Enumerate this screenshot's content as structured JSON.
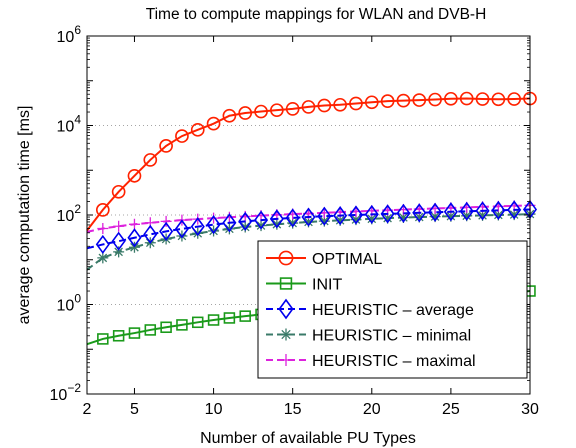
{
  "chart_data": {
    "type": "line",
    "title": "Time to compute mappings for WLAN and DVB-H",
    "xlabel": "Number of available PU Types",
    "ylabel": "average computation time [ms]",
    "y_scale": "log",
    "xlim": [
      2,
      30
    ],
    "ylim": [
      0.01,
      1000000
    ],
    "x_ticks": [
      2,
      5,
      10,
      15,
      20,
      25,
      30
    ],
    "y_ticks": [
      {
        "value": 0.01,
        "base": "10",
        "exp": "−2"
      },
      {
        "value": 1,
        "base": "10",
        "exp": "0"
      },
      {
        "value": 100,
        "base": "10",
        "exp": "2"
      },
      {
        "value": 10000,
        "base": "10",
        "exp": "4"
      },
      {
        "value": 1000000,
        "base": "10",
        "exp": "6"
      }
    ],
    "grid": "horizontal dotted at major y ticks",
    "legend_position": "bottom-right",
    "x": [
      2,
      3,
      4,
      5,
      6,
      7,
      8,
      9,
      10,
      11,
      12,
      13,
      14,
      15,
      16,
      17,
      18,
      19,
      20,
      21,
      22,
      23,
      24,
      25,
      26,
      27,
      28,
      29,
      30
    ],
    "series": [
      {
        "name": "OPTIMAL",
        "color": "#ff2200",
        "line_style": "solid",
        "marker": "circle",
        "x_start": 3,
        "values": [
          45,
          130,
          330,
          750,
          1700,
          3500,
          5800,
          8000,
          11000,
          16500,
          19000,
          20500,
          22000,
          23500,
          26000,
          28000,
          29000,
          31000,
          33000,
          35000,
          36000,
          37000,
          38000,
          39500,
          40000,
          39000,
          38500,
          39000,
          40000
        ]
      },
      {
        "name": "INIT",
        "color": "#1a9a1a",
        "line_style": "solid",
        "marker": "square",
        "x_start": 3,
        "values": [
          0.13,
          0.17,
          0.2,
          0.23,
          0.27,
          0.31,
          0.35,
          0.4,
          0.45,
          0.5,
          0.55,
          0.6,
          0.66,
          0.72,
          0.78,
          0.84,
          0.9,
          0.96,
          1.02,
          1.08,
          1.14,
          1.2,
          1.27,
          1.34,
          1.42,
          1.52,
          1.65,
          1.82,
          2.0
        ]
      },
      {
        "name": "HEURISTIC – average",
        "color": "#0000ee",
        "line_style": "dashed",
        "marker": "diamond",
        "x_start": 3,
        "values": [
          18,
          22,
          26,
          31,
          37,
          43,
          49,
          55,
          61,
          67,
          72,
          77,
          82,
          86,
          90,
          94,
          97,
          100,
          103,
          106,
          109,
          112,
          115,
          118,
          121,
          124,
          127,
          130,
          133
        ]
      },
      {
        "name": "HEURISTIC – minimal",
        "color": "#3a7a68",
        "line_style": "dashed",
        "marker": "asterisk",
        "x_start": 3,
        "values": [
          6,
          11,
          15,
          19,
          24,
          29,
          34,
          39,
          44,
          49,
          54,
          58,
          62,
          66,
          70,
          73,
          76,
          79,
          82,
          85,
          88,
          90,
          92,
          94,
          96,
          98,
          100,
          102,
          105
        ]
      },
      {
        "name": "HEURISTIC – maximal",
        "color": "#dd22dd",
        "line_style": "dashed",
        "marker": "plus",
        "x_start": 3,
        "values": [
          42,
          50,
          56,
          62,
          67,
          72,
          77,
          81,
          85,
          89,
          93,
          97,
          101,
          105,
          108,
          112,
          116,
          120,
          124,
          128,
          132,
          136,
          140,
          144,
          148,
          152,
          156,
          160,
          164
        ]
      }
    ]
  }
}
